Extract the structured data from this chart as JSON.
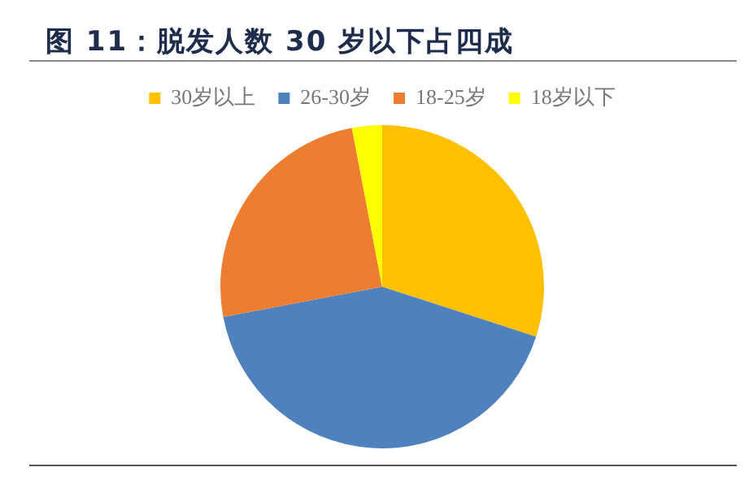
{
  "chart_data": {
    "type": "pie",
    "title": "图 11：脱发人数 30 岁以下占四成",
    "categories": [
      "30岁以上",
      "26-30岁",
      "18-25岁",
      "18岁以下"
    ],
    "values": [
      30,
      42,
      25,
      3
    ],
    "colors": [
      "#ffc000",
      "#4e81bd",
      "#ed7d31",
      "#ffff00"
    ],
    "legend": "top"
  }
}
